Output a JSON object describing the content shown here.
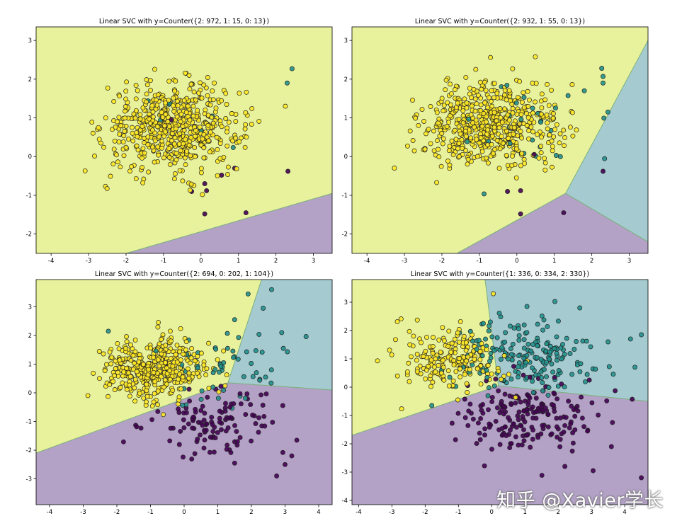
{
  "watermark": "知乎 @Xavier学长",
  "colors": {
    "class0": "#440154",
    "class1": "#21918c",
    "class2": "#fde725",
    "region0": "#b3a2c6",
    "region1": "#a5cbd0",
    "region2": "#e8f29c",
    "boundary": "#7ab07a",
    "marker_edge": "#222222"
  },
  "chart_data": [
    {
      "type": "scatter",
      "title": "Linear SVC with y=Counter({2: 972, 1: 15, 0: 13})",
      "xlim": [
        -4.4,
        3.5
      ],
      "ylim": [
        -2.5,
        3.35
      ],
      "xticks": [
        -4,
        -3,
        -2,
        -1,
        0,
        1,
        2,
        3
      ],
      "yticks": [
        -2,
        -1,
        0,
        1,
        2,
        3
      ],
      "grid": false,
      "boundaries": [
        [
          [
            -2.0,
            -2.5
          ],
          [
            3.5,
            -0.95
          ]
        ]
      ],
      "counts": {
        "0": 13,
        "1": 15,
        "2": 972
      },
      "clusters": {
        "2": {
          "mean": [
            -0.75,
            0.75
          ],
          "std": [
            0.9,
            0.55
          ],
          "n": 972
        },
        "1": {
          "mean": [
            -0.2,
            0.9
          ],
          "std": [
            1.1,
            0.6
          ],
          "n": 15
        },
        "0": {
          "mean": [
            0.3,
            0.0
          ],
          "std": [
            0.9,
            0.9
          ],
          "n": 13
        }
      },
      "regions": [
        {
          "class": 2,
          "polygon": [
            [
              -4.4,
              3.35
            ],
            [
              3.5,
              3.35
            ],
            [
              3.5,
              -0.95
            ],
            [
              -2.0,
              -2.5
            ],
            [
              -4.4,
              -2.5
            ]
          ]
        },
        {
          "class": 0,
          "polygon": [
            [
              -2.0,
              -2.5
            ],
            [
              3.5,
              -0.95
            ],
            [
              3.5,
              -2.5
            ]
          ]
        }
      ],
      "points": [
        {
          "x": 2.43,
          "y": 2.27,
          "c": 1
        },
        {
          "x": 2.3,
          "y": 1.9,
          "c": 1
        },
        {
          "x": 2.25,
          "y": 1.3,
          "c": 2
        },
        {
          "x": 2.32,
          "y": -0.38,
          "c": 0
        },
        {
          "x": 1.2,
          "y": -1.45,
          "c": 0
        },
        {
          "x": 0.1,
          "y": -1.48,
          "c": 0
        },
        {
          "x": -0.25,
          "y": -0.9,
          "c": 0
        },
        {
          "x": 0.15,
          "y": -0.88,
          "c": 0
        },
        {
          "x": 0.55,
          "y": -0.48,
          "c": 0
        },
        {
          "x": 0.1,
          "y": -0.7,
          "c": 0
        },
        {
          "x": -0.8,
          "y": 0.95,
          "c": 0
        },
        {
          "x": 0.9,
          "y": -0.3,
          "c": 0
        }
      ]
    },
    {
      "type": "scatter",
      "title": "Linear SVC with y=Counter({2: 932, 1: 55, 0: 13})",
      "xlim": [
        -4.4,
        3.5
      ],
      "ylim": [
        -2.5,
        3.35
      ],
      "xticks": [
        -4,
        -3,
        -2,
        -1,
        0,
        1,
        2,
        3
      ],
      "yticks": [
        -2,
        -1,
        0,
        1,
        2,
        3
      ],
      "grid": false,
      "boundaries": [
        [
          [
            -1.6,
            -2.5
          ],
          [
            1.3,
            -0.95
          ],
          [
            3.5,
            3.0
          ]
        ],
        [
          [
            1.3,
            -0.95
          ],
          [
            3.5,
            -2.2
          ]
        ]
      ],
      "counts": {
        "0": 13,
        "1": 55,
        "2": 932
      },
      "clusters": {
        "2": {
          "mean": [
            -0.7,
            0.8
          ],
          "std": [
            0.9,
            0.55
          ],
          "n": 932
        },
        "1": {
          "mean": [
            0.6,
            0.8
          ],
          "std": [
            0.9,
            0.6
          ],
          "n": 55
        },
        "0": {
          "mean": [
            0.3,
            0.0
          ],
          "std": [
            0.9,
            0.9
          ],
          "n": 13
        }
      },
      "regions": [
        {
          "class": 2,
          "polygon": [
            [
              -4.4,
              3.35
            ],
            [
              3.5,
              3.35
            ],
            [
              3.5,
              3.0
            ],
            [
              1.3,
              -0.95
            ],
            [
              -1.6,
              -2.5
            ],
            [
              -4.4,
              -2.5
            ]
          ]
        },
        {
          "class": 1,
          "polygon": [
            [
              3.5,
              3.0
            ],
            [
              3.5,
              -2.2
            ],
            [
              1.3,
              -0.95
            ]
          ]
        },
        {
          "class": 0,
          "polygon": [
            [
              -1.6,
              -2.5
            ],
            [
              1.3,
              -0.95
            ],
            [
              3.5,
              -2.2
            ],
            [
              3.5,
              -2.5
            ]
          ]
        }
      ],
      "points": [
        {
          "x": 2.3,
          "y": -0.38,
          "c": 0
        },
        {
          "x": 1.25,
          "y": -1.45,
          "c": 0
        },
        {
          "x": 0.1,
          "y": -1.48,
          "c": 0
        },
        {
          "x": -0.25,
          "y": -0.9,
          "c": 0
        },
        {
          "x": 0.1,
          "y": -0.88,
          "c": 0
        },
        {
          "x": 2.3,
          "y": 2.07,
          "c": 1
        },
        {
          "x": 2.3,
          "y": 1.9,
          "c": 1
        },
        {
          "x": 1.8,
          "y": 1.7,
          "c": 1
        },
        {
          "x": 2.43,
          "y": 1.15,
          "c": 1
        }
      ]
    },
    {
      "type": "scatter",
      "title": "Linear SVC with y=Counter({2: 694, 0: 202, 1: 104})",
      "xlim": [
        -4.4,
        4.4
      ],
      "ylim": [
        -3.9,
        3.95
      ],
      "xticks": [
        -4,
        -3,
        -2,
        -1,
        0,
        1,
        2,
        3,
        4
      ],
      "yticks": [
        -3,
        -2,
        -1,
        0,
        1,
        2,
        3
      ],
      "grid": false,
      "boundaries": [
        [
          [
            -4.4,
            -2.1
          ],
          [
            1.3,
            0.35
          ],
          [
            2.3,
            3.95
          ]
        ],
        [
          [
            1.3,
            0.35
          ],
          [
            4.4,
            0.1
          ]
        ]
      ],
      "counts": {
        "0": 202,
        "1": 104,
        "2": 694
      },
      "clusters": {
        "2": {
          "mean": [
            -0.95,
            0.8
          ],
          "std": [
            0.75,
            0.55
          ],
          "n": 694
        },
        "1": {
          "mean": [
            1.0,
            1.0
          ],
          "std": [
            1.0,
            0.65
          ],
          "n": 104
        },
        "0": {
          "mean": [
            0.85,
            -0.95
          ],
          "std": [
            1.05,
            0.55
          ],
          "n": 202
        }
      },
      "regions": [
        {
          "class": 2,
          "polygon": [
            [
              -4.4,
              3.95
            ],
            [
              2.3,
              3.95
            ],
            [
              1.3,
              0.35
            ],
            [
              -4.4,
              -2.1
            ]
          ]
        },
        {
          "class": 1,
          "polygon": [
            [
              2.3,
              3.95
            ],
            [
              4.4,
              3.95
            ],
            [
              4.4,
              0.1
            ],
            [
              1.3,
              0.35
            ]
          ]
        },
        {
          "class": 0,
          "polygon": [
            [
              -4.4,
              -2.1
            ],
            [
              1.3,
              0.35
            ],
            [
              4.4,
              0.1
            ],
            [
              4.4,
              -3.9
            ],
            [
              -4.4,
              -3.9
            ]
          ]
        }
      ],
      "points": [
        {
          "x": 2.6,
          "y": 3.6,
          "c": 1
        },
        {
          "x": 1.9,
          "y": 3.45,
          "c": 1
        },
        {
          "x": 2.35,
          "y": 2.95,
          "c": 1
        },
        {
          "x": 2.9,
          "y": 2.1,
          "c": 1
        },
        {
          "x": 2.95,
          "y": 1.55,
          "c": 1
        },
        {
          "x": 1.5,
          "y": 2.55,
          "c": 1
        },
        {
          "x": 2.75,
          "y": -2.9,
          "c": 0
        },
        {
          "x": 3.35,
          "y": -1.65,
          "c": 0
        },
        {
          "x": 3.0,
          "y": -2.5,
          "c": 0
        },
        {
          "x": 3.2,
          "y": -2.2,
          "c": 0
        },
        {
          "x": 1.5,
          "y": -2.45,
          "c": 0
        }
      ]
    },
    {
      "type": "scatter",
      "title": "Linear SVC with y=Counter({1: 336, 0: 334, 2: 330})",
      "xlim": [
        -4.2,
        4.7
      ],
      "ylim": [
        -4.15,
        3.8
      ],
      "xticks": [
        -4,
        -3,
        -2,
        -1,
        0,
        1,
        2,
        3,
        4
      ],
      "yticks": [
        -4,
        -3,
        -2,
        -1,
        0,
        1,
        2,
        3
      ],
      "grid": false,
      "boundaries": [
        [
          [
            -4.2,
            -1.7
          ],
          [
            0.2,
            0.05
          ],
          [
            -0.2,
            3.8
          ]
        ],
        [
          [
            0.2,
            0.05
          ],
          [
            4.7,
            -0.5
          ]
        ]
      ],
      "counts": {
        "0": 334,
        "1": 336,
        "2": 330
      },
      "clusters": {
        "2": {
          "mean": [
            -1.25,
            0.95
          ],
          "std": [
            0.8,
            0.55
          ],
          "n": 330
        },
        "1": {
          "mean": [
            1.1,
            1.15
          ],
          "std": [
            1.05,
            0.65
          ],
          "n": 336
        },
        "0": {
          "mean": [
            1.05,
            -1.05
          ],
          "std": [
            1.05,
            0.65
          ],
          "n": 334
        }
      },
      "regions": [
        {
          "class": 2,
          "polygon": [
            [
              -4.2,
              3.8
            ],
            [
              -0.2,
              3.8
            ],
            [
              0.2,
              0.05
            ],
            [
              -4.2,
              -1.7
            ]
          ]
        },
        {
          "class": 1,
          "polygon": [
            [
              -0.2,
              3.8
            ],
            [
              4.7,
              3.8
            ],
            [
              4.7,
              -0.5
            ],
            [
              0.2,
              0.05
            ]
          ]
        },
        {
          "class": 0,
          "polygon": [
            [
              -4.2,
              -1.7
            ],
            [
              0.2,
              0.05
            ],
            [
              4.7,
              -0.5
            ],
            [
              4.7,
              -4.15
            ],
            [
              -4.2,
              -4.15
            ]
          ]
        }
      ],
      "points": [
        {
          "x": 2.65,
          "y": 2.8,
          "c": 1
        },
        {
          "x": 4.5,
          "y": 1.85,
          "c": 1
        },
        {
          "x": 3.5,
          "y": 1.6,
          "c": 1
        },
        {
          "x": 4.5,
          "y": -3.2,
          "c": 0
        },
        {
          "x": 2.2,
          "y": -2.8,
          "c": 0
        },
        {
          "x": 3.05,
          "y": -2.95,
          "c": 0
        },
        {
          "x": 3.6,
          "y": -2.1,
          "c": 0
        },
        {
          "x": -1.8,
          "y": -0.65,
          "c": 1
        },
        {
          "x": 0.05,
          "y": 3.3,
          "c": 2
        }
      ]
    }
  ]
}
